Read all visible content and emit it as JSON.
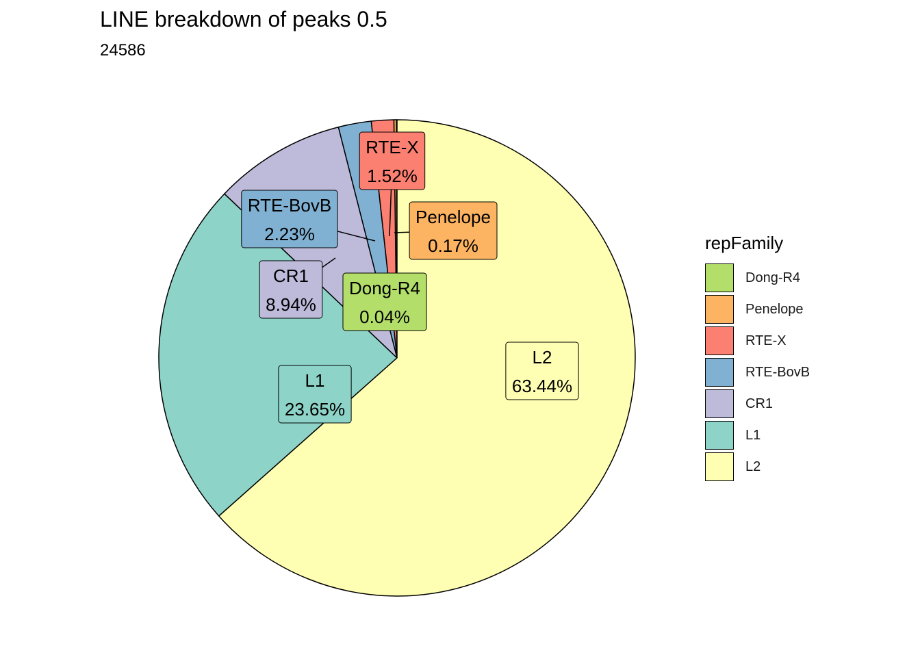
{
  "chart_data": {
    "type": "pie",
    "title": "LINE breakdown of peaks 0.5",
    "subtitle": "24586",
    "legend_title": "repFamily",
    "legend_position": "right",
    "slices": [
      {
        "label": "Dong-R4",
        "value": 0.04,
        "display": "0.04%",
        "color": "#B3DE69"
      },
      {
        "label": "Penelope",
        "value": 0.17,
        "display": "0.17%",
        "color": "#FDB462"
      },
      {
        "label": "RTE-X",
        "value": 1.52,
        "display": "1.52%",
        "color": "#FB8072"
      },
      {
        "label": "RTE-BovB",
        "value": 2.23,
        "display": "2.23%",
        "color": "#80B1D3"
      },
      {
        "label": "CR1",
        "value": 8.94,
        "display": "8.94%",
        "color": "#BEBADA"
      },
      {
        "label": "L1",
        "value": 23.65,
        "display": "23.65%",
        "color": "#8DD3C7"
      },
      {
        "label": "L2",
        "value": 63.44,
        "display": "63.44%",
        "color": "#FFFFB3"
      }
    ]
  }
}
